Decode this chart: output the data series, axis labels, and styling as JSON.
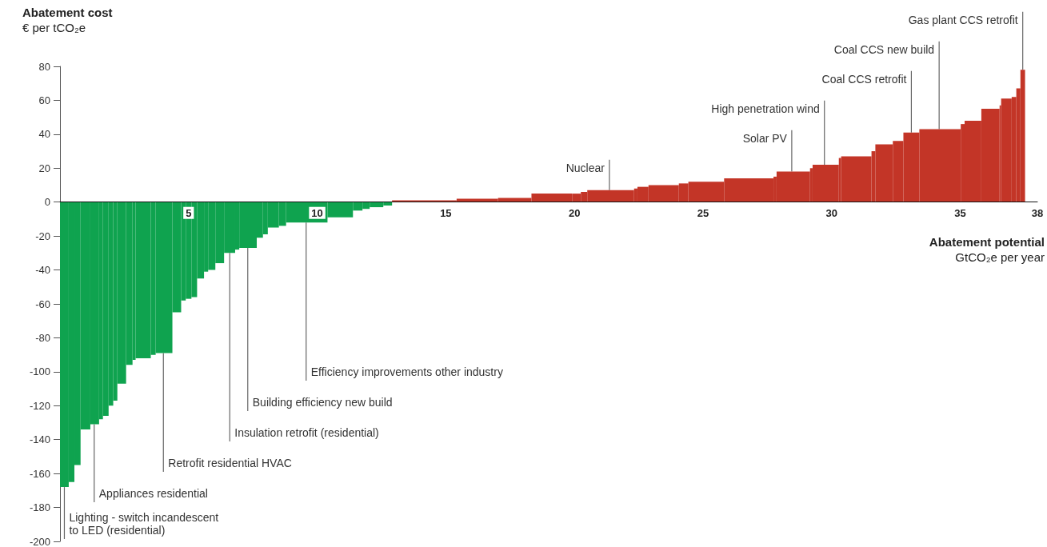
{
  "chart_data": {
    "type": "histogram",
    "ylabel": "Abatement cost\n€ per tCO₂e",
    "xlabel": "Abatement potential\nGtCO₂e per year",
    "bins": [
      0,
      0.34,
      0.56,
      0.8,
      1.18,
      1.52,
      1.67,
      1.89,
      2.07,
      2.23,
      2.57,
      2.82,
      2.94,
      3.53,
      3.72,
      4.37,
      4.71,
      4.89,
      5.11,
      5.33,
      5.6,
      5.76,
      6.04,
      6.38,
      6.81,
      6.97,
      7.65,
      7.89,
      8.08,
      8.51,
      8.79,
      10.4,
      11.39,
      11.76,
      12.04,
      12.57,
      12.91,
      15.42,
      17.03,
      18.33,
      19.91,
      20.25,
      20.5,
      22.32,
      22.45,
      22.88,
      24.06,
      24.43,
      25.82,
      27.74,
      27.86,
      29.16,
      29.26,
      30.28,
      30.37,
      31.55,
      31.7,
      32.38,
      32.79,
      33.41,
      35.02,
      35.17,
      35.82,
      36.53,
      36.59,
      37,
      37.18,
      37.34,
      37.52
    ],
    "values": [
      -168,
      -165,
      -155,
      -134,
      -131,
      -128,
      -126,
      -120,
      -117,
      -107,
      -96,
      -93,
      -92,
      -90,
      -89,
      -65,
      -58,
      -57,
      -56,
      -45,
      -41,
      -40,
      -36,
      -30,
      -28,
      -27,
      -21,
      -19,
      -15,
      -14,
      -12,
      -9,
      -5,
      -4,
      -3,
      -2,
      1,
      2,
      2.5,
      5,
      5,
      6,
      7,
      8,
      9,
      10,
      11,
      12,
      14,
      15,
      18,
      20,
      22,
      26,
      27,
      30,
      34,
      36,
      41,
      43,
      46,
      48,
      55,
      57,
      61,
      62,
      67,
      78
    ],
    "colors": [
      "#0fa34f",
      "#0fa34f",
      "#0fa34f",
      "#0fa34f",
      "#0fa34f",
      "#0fa34f",
      "#0fa34f",
      "#0fa34f",
      "#0fa34f",
      "#0fa34f",
      "#0fa34f",
      "#0fa34f",
      "#0fa34f",
      "#0fa34f",
      "#0fa34f",
      "#0fa34f",
      "#0fa34f",
      "#0fa34f",
      "#0fa34f",
      "#0fa34f",
      "#0fa34f",
      "#0fa34f",
      "#0fa34f",
      "#0fa34f",
      "#0fa34f",
      "#0fa34f",
      "#0fa34f",
      "#0fa34f",
      "#0fa34f",
      "#0fa34f",
      "#0fa34f",
      "#0fa34f",
      "#0fa34f",
      "#0fa34f",
      "#0fa34f",
      "#0fa34f",
      "#c33527",
      "#c33527",
      "#c33527",
      "#c33527",
      "#c33527",
      "#c33527",
      "#c33527",
      "#c33527",
      "#c33527",
      "#c33527",
      "#c33527",
      "#c33527",
      "#c33527",
      "#c33527",
      "#c33527",
      "#c33527",
      "#c33527",
      "#c33527",
      "#c33527",
      "#c33527",
      "#c33527",
      "#c33527",
      "#c33527",
      "#c33527",
      "#c33527",
      "#c33527",
      "#c33527",
      "#c33527",
      "#c33527",
      "#c33527",
      "#c33527",
      "#c33527"
    ],
    "xlim": [
      0,
      38
    ],
    "xticks": [
      5,
      10,
      15,
      20,
      25,
      30,
      35,
      38
    ],
    "ylim": [
      -200,
      80
    ],
    "yticks": [
      -200,
      -180,
      -160,
      -140,
      -120,
      -100,
      -80,
      -60,
      -40,
      -20,
      0,
      20,
      40,
      60,
      80
    ],
    "annotations": [
      {
        "text": "Lighting - switch incandescent\nto LED (residential)",
        "x": 0.17,
        "y": -168
      },
      {
        "text": "Appliances residential",
        "x": 1.33,
        "y": -131
      },
      {
        "text": "Retrofit residential HVAC",
        "x": 4.02,
        "y": -89
      },
      {
        "text": "Insulation retrofit (residential)",
        "x": 6.6,
        "y": -30
      },
      {
        "text": "Building efficiency new build",
        "x": 7.3,
        "y": -27
      },
      {
        "text": "Efficiency improvements other industry",
        "x": 9.57,
        "y": -12
      },
      {
        "text": "Nuclear",
        "x": 21.36,
        "y": 7
      },
      {
        "text": "Solar PV",
        "x": 28.45,
        "y": 18
      },
      {
        "text": "High penetration wind",
        "x": 29.72,
        "y": 22
      },
      {
        "text": "Coal CCS retrofit",
        "x": 33.1,
        "y": 41
      },
      {
        "text": "Coal CCS new build",
        "x": 34.18,
        "y": 43
      },
      {
        "text": "Gas plant CCS retrofit",
        "x": 37.43,
        "y": 78
      }
    ]
  }
}
